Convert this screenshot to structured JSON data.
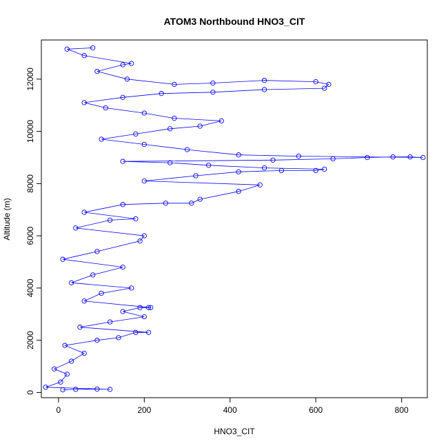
{
  "chart_data": {
    "type": "scatter",
    "title": "ATOM3 Northbound HNO3_CIT",
    "xlabel": "HNO3_CIT",
    "ylabel": "Altitude (m)",
    "xlim": [
      -40,
      860
    ],
    "ylim": [
      -200,
      13500
    ],
    "x_ticks": [
      0,
      200,
      400,
      600,
      800
    ],
    "y_ticks": [
      0,
      2000,
      4000,
      6000,
      8000,
      10000,
      12000
    ],
    "marker": "open-circle",
    "connect_points": true,
    "series_color": "#0000ff",
    "grid": false,
    "legend": "none",
    "series": [
      {
        "points": [
          [
            10,
            100
          ],
          [
            40,
            120
          ],
          [
            90,
            130
          ],
          [
            120,
            120
          ],
          [
            -30,
            200
          ],
          [
            5,
            400
          ],
          [
            20,
            700
          ],
          [
            -10,
            900
          ],
          [
            30,
            1200
          ],
          [
            60,
            1500
          ],
          [
            15,
            1800
          ],
          [
            90,
            2000
          ],
          [
            140,
            2100
          ],
          [
            180,
            2300
          ],
          [
            210,
            2300
          ],
          [
            50,
            2500
          ],
          [
            120,
            2700
          ],
          [
            200,
            2900
          ],
          [
            150,
            3100
          ],
          [
            190,
            3250
          ],
          [
            210,
            3250
          ],
          [
            215,
            3250
          ],
          [
            60,
            3500
          ],
          [
            100,
            3800
          ],
          [
            170,
            4000
          ],
          [
            30,
            4200
          ],
          [
            80,
            4500
          ],
          [
            150,
            4800
          ],
          [
            10,
            5100
          ],
          [
            90,
            5400
          ],
          [
            190,
            5800
          ],
          [
            200,
            6000
          ],
          [
            40,
            6300
          ],
          [
            120,
            6600
          ],
          [
            180,
            6650
          ],
          [
            60,
            6900
          ],
          [
            150,
            7200
          ],
          [
            250,
            7250
          ],
          [
            310,
            7250
          ],
          [
            330,
            7400
          ],
          [
            420,
            7700
          ],
          [
            470,
            7950
          ],
          [
            200,
            8100
          ],
          [
            320,
            8300
          ],
          [
            420,
            8450
          ],
          [
            520,
            8500
          ],
          [
            600,
            8500
          ],
          [
            620,
            8550
          ],
          [
            480,
            8600
          ],
          [
            350,
            8700
          ],
          [
            260,
            8800
          ],
          [
            150,
            8850
          ],
          [
            500,
            8900
          ],
          [
            640,
            8950
          ],
          [
            720,
            9000
          ],
          [
            780,
            9020
          ],
          [
            820,
            9020
          ],
          [
            850,
            9000
          ],
          [
            560,
            9050
          ],
          [
            420,
            9100
          ],
          [
            300,
            9300
          ],
          [
            200,
            9500
          ],
          [
            100,
            9700
          ],
          [
            180,
            9900
          ],
          [
            260,
            10100
          ],
          [
            330,
            10200
          ],
          [
            380,
            10400
          ],
          [
            270,
            10500
          ],
          [
            200,
            10700
          ],
          [
            110,
            10900
          ],
          [
            60,
            11100
          ],
          [
            150,
            11300
          ],
          [
            240,
            11450
          ],
          [
            360,
            11500
          ],
          [
            480,
            11600
          ],
          [
            620,
            11650
          ],
          [
            630,
            11800
          ],
          [
            600,
            11900
          ],
          [
            480,
            11950
          ],
          [
            360,
            11850
          ],
          [
            270,
            11800
          ],
          [
            160,
            12000
          ],
          [
            90,
            12300
          ],
          [
            150,
            12550
          ],
          [
            170,
            12600
          ],
          [
            60,
            12900
          ],
          [
            20,
            13150
          ],
          [
            80,
            13200
          ]
        ]
      }
    ]
  }
}
